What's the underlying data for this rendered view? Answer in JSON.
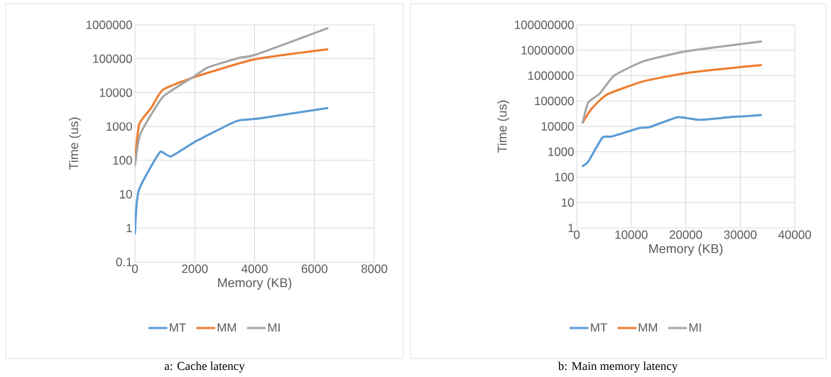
{
  "chart_data": [
    {
      "type": "line",
      "xlabel": "Memory (KB)",
      "ylabel": "Time (us)",
      "log": "y",
      "grid": true,
      "legend": "bottom",
      "xlim": [
        0,
        8000
      ],
      "xticks": [
        0,
        2000,
        4000,
        6000,
        8000
      ],
      "ylim": [
        0.1,
        1000000
      ],
      "yticks": [
        0.1,
        1,
        10,
        100,
        1000,
        10000,
        100000,
        1000000
      ],
      "annotations": [
        "a: Cache latency"
      ],
      "series": [
        {
          "name": "MT",
          "color": "#5b9bd5",
          "x": [
            0,
            50,
            140,
            460,
            850,
            1200,
            2000,
            3230,
            3540,
            4170,
            6430
          ],
          "values": [
            0.7,
            4.5,
            14,
            50,
            180,
            130,
            350,
            1250,
            1550,
            1730,
            3500
          ]
        },
        {
          "name": "MM",
          "color": "#ed7d31",
          "x": [
            0,
            140,
            540,
            930,
            2000,
            4020,
            6430
          ],
          "values": [
            95,
            1150,
            3500,
            12000,
            29000,
            97000,
            190000
          ]
        },
        {
          "name": "MI",
          "color": "#a5a5a5",
          "x": [
            0,
            180,
            930,
            2000,
            2430,
            3460,
            4020,
            6430
          ],
          "values": [
            69,
            600,
            7400,
            31000,
            55000,
            105000,
            130000,
            790000
          ]
        }
      ]
    },
    {
      "type": "line",
      "xlabel": "Memory (KB)",
      "ylabel": "Time (us)",
      "log": "y",
      "grid": true,
      "legend": "bottom",
      "xlim": [
        0,
        40000
      ],
      "xticks": [
        0,
        10000,
        20000,
        30000,
        40000
      ],
      "ylim": [
        1,
        100000000
      ],
      "yticks": [
        1,
        10,
        100,
        1000,
        10000,
        100000,
        1000000,
        10000000,
        100000000
      ],
      "annotations": [
        "b: Main memory latency"
      ],
      "series": [
        {
          "name": "MT",
          "color": "#5b9bd5",
          "x": [
            1090,
            2090,
            4700,
            6430,
            11430,
            13400,
            18600,
            22500,
            28800,
            30800,
            33800
          ],
          "values": [
            275,
            400,
            3600,
            4000,
            8500,
            9400,
            23000,
            18000,
            24000,
            25000,
            28000
          ]
        },
        {
          "name": "MM",
          "color": "#ed7d31",
          "x": [
            1090,
            2740,
            5570,
            12300,
            20100,
            30300,
            33800
          ],
          "values": [
            14000,
            50000,
            180000,
            600000,
            1260000,
            2200000,
            2600000
          ]
        },
        {
          "name": "MI",
          "color": "#a5a5a5",
          "x": [
            1090,
            2090,
            4260,
            6870,
            12300,
            20100,
            33800
          ],
          "values": [
            14000,
            86000,
            200000,
            1000000,
            3700000,
            9100000,
            22000000
          ]
        }
      ]
    }
  ]
}
